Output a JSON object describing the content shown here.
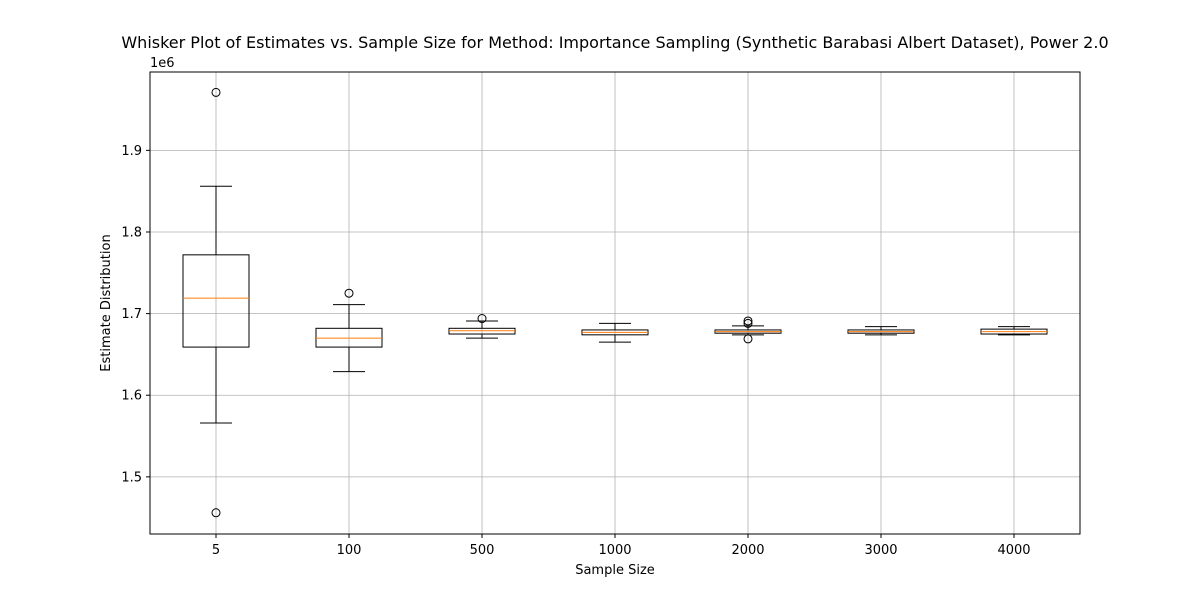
{
  "chart_data": {
    "type": "box",
    "title": "Whisker Plot of Estimates vs. Sample Size for Method: Importance Sampling (Synthetic Barabasi Albert Dataset), Power 2.0",
    "xlabel": "Sample Size",
    "ylabel": "Estimate Distribution",
    "y_offset_label": "1e6",
    "y_scale_factor": 1000000,
    "ylim": [
      1.43,
      1.996
    ],
    "yticks": [
      1.5,
      1.6,
      1.7,
      1.8,
      1.9
    ],
    "grid": true,
    "categories": [
      "5",
      "100",
      "500",
      "1000",
      "2000",
      "3000",
      "4000"
    ],
    "boxes": [
      {
        "category": "5",
        "whisker_low": 1.566,
        "q1": 1.659,
        "median": 1.719,
        "q3": 1.772,
        "whisker_high": 1.856,
        "outliers": [
          1.971,
          1.456
        ]
      },
      {
        "category": "100",
        "whisker_low": 1.629,
        "q1": 1.659,
        "median": 1.67,
        "q3": 1.682,
        "whisker_high": 1.711,
        "outliers": [
          1.725
        ]
      },
      {
        "category": "500",
        "whisker_low": 1.67,
        "q1": 1.675,
        "median": 1.679,
        "q3": 1.682,
        "whisker_high": 1.691,
        "outliers": [
          1.694
        ]
      },
      {
        "category": "1000",
        "whisker_low": 1.665,
        "q1": 1.674,
        "median": 1.677,
        "q3": 1.68,
        "whisker_high": 1.688,
        "outliers": []
      },
      {
        "category": "2000",
        "whisker_low": 1.674,
        "q1": 1.676,
        "median": 1.678,
        "q3": 1.68,
        "whisker_high": 1.685,
        "outliers": [
          1.691,
          1.688,
          1.669
        ]
      },
      {
        "category": "3000",
        "whisker_low": 1.674,
        "q1": 1.676,
        "median": 1.678,
        "q3": 1.68,
        "whisker_high": 1.684,
        "outliers": []
      },
      {
        "category": "4000",
        "whisker_low": 1.674,
        "q1": 1.675,
        "median": 1.678,
        "q3": 1.681,
        "whisker_high": 1.684,
        "outliers": []
      }
    ],
    "colors": {
      "box_edge": "#000000",
      "median": "#ff7f0e",
      "grid": "#b0b0b0",
      "background": "#ffffff"
    }
  }
}
